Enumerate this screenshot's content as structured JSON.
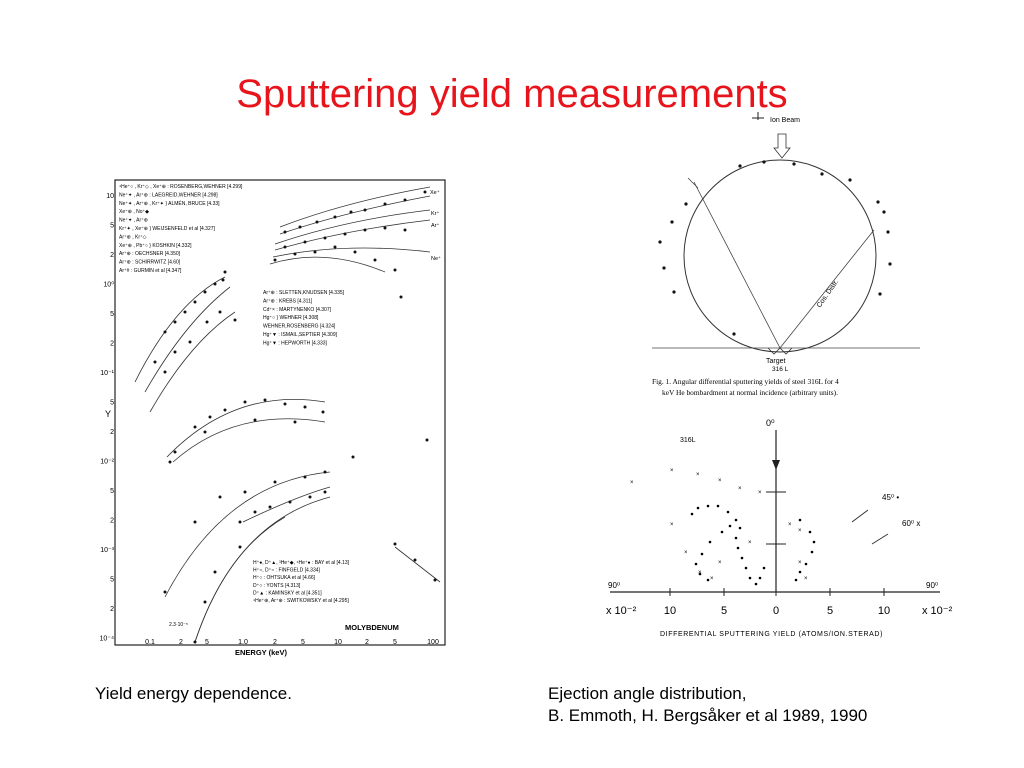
{
  "slide": {
    "title": "Sputtering yield measurements",
    "title_color": "#e8141b",
    "caption_left": "Yield energy dependence.",
    "caption_right_line1": "Ejection angle distribution,",
    "caption_right_line2": "B. Emmoth, H. Bergsåker et al 1989, 1990"
  },
  "yield_plot": {
    "y_axis_label": "Y",
    "x_axis_label": "ENERGY (keV)",
    "material_label": "MOLYBDENUM",
    "x_ticks": [
      "0.1",
      "2",
      "5",
      "1.0",
      "2",
      "5",
      "10",
      "2",
      "5",
      "100"
    ],
    "y_ticks": [
      "10",
      "5",
      "2",
      "10⁰",
      "5",
      "2",
      "10⁻¹",
      "5",
      "2",
      "10⁻²",
      "5",
      "2",
      "10⁻³",
      "5",
      "2",
      "10⁻⁴"
    ],
    "legend_top": [
      "⁴He⁺○ , Kr⁺◇ , Xe⁺⊕ : ROSENBERG,WEHNER [4.299]",
      "Ne⁺✦ , Ar⁺⊕ : LAEGREID,WEHNER [4.298]",
      "Ne⁺✦ , Ar⁺⊕ , Kr⁺✦ } ALMÉN, BRUCE [4.33]",
      "Xe⁺⊕ , No⁺◆",
      "Ne⁺✦ , Ar⁺⊕",
      "Kr⁺✦ , Xe⁺⊕  } WEIJSENFELD et al [4.327]",
      "Ar⁺⊕ , Kr⁺◇",
      "Xe⁺⊕ , Pb⁺○  } KOSHKIN [4.332]",
      "Ar⁺⊕ : OECHSNER [4.350]",
      "Ar⁺⊕ : SCHIRRWITZ [4.60]",
      "Ar⁺# : GURMIN et al [4.347]"
    ],
    "legend_mid": [
      "Ar⁺⊕ : SLETTEN,KNUDSEN [4.335]",
      "Ar⁺⊕ : KREBS [4.311]",
      "Cd⁺× : MARTYNENKO [4.307]",
      "Hg⁺○ } WEHNER [4.308]",
      "WEHNER,ROSENBERG [4.324]",
      "Hg⁺▼ : ISMAIL,SEPTIER [4.309]",
      "Hg⁺▼ : HEPWORTH [4.333]"
    ],
    "legend_bottom": [
      "H⁺●, D⁺▲, ³He⁺◆, ⁴He⁺● : BAY et al [4.13]",
      "H⁺○, D⁺○ : FINFGELD [4.334]",
      "H⁺○ : OHTSUKA et al [4.66]",
      "D⁺○ : YONTS [4.313]",
      "D⁺▲ : KAMINSKY et al [4.351]",
      "⁴He⁺⊕, Ar⁺⊕ : SWITKOWSKY et al [4.295]"
    ],
    "curve_labels": [
      "Xe⁺",
      "Kr⁺",
      "Ar⁺",
      "Ne⁺"
    ],
    "small_label": "2.3·10⁻⁵"
  },
  "angle_fig1": {
    "ion_beam_label": "Ion Beam",
    "target_label": "Target",
    "target_sub": "316 L",
    "cos_label": "Cos. Distr.",
    "caption_line1": "Fig. 1. Angular differential sputtering yields of steel 316L for 4",
    "caption_line2": "keV He bombardment at normal incidence (arbitrary units)."
  },
  "angle_fig2": {
    "top_angle": "0⁰",
    "material": "316L",
    "left_angle": "90⁰",
    "right_angle": "90⁰",
    "x_ticks": [
      "10",
      "5",
      "0",
      "5",
      "10"
    ],
    "scale_left": "x 10⁻²",
    "scale_right": "x 10⁻²",
    "legend_45": "45⁰ •",
    "legend_60": "60⁰ x",
    "x_axis_label": "DIFFERENTIAL SPUTTERING YIELD (ATOMS/ION.STERAD)"
  }
}
